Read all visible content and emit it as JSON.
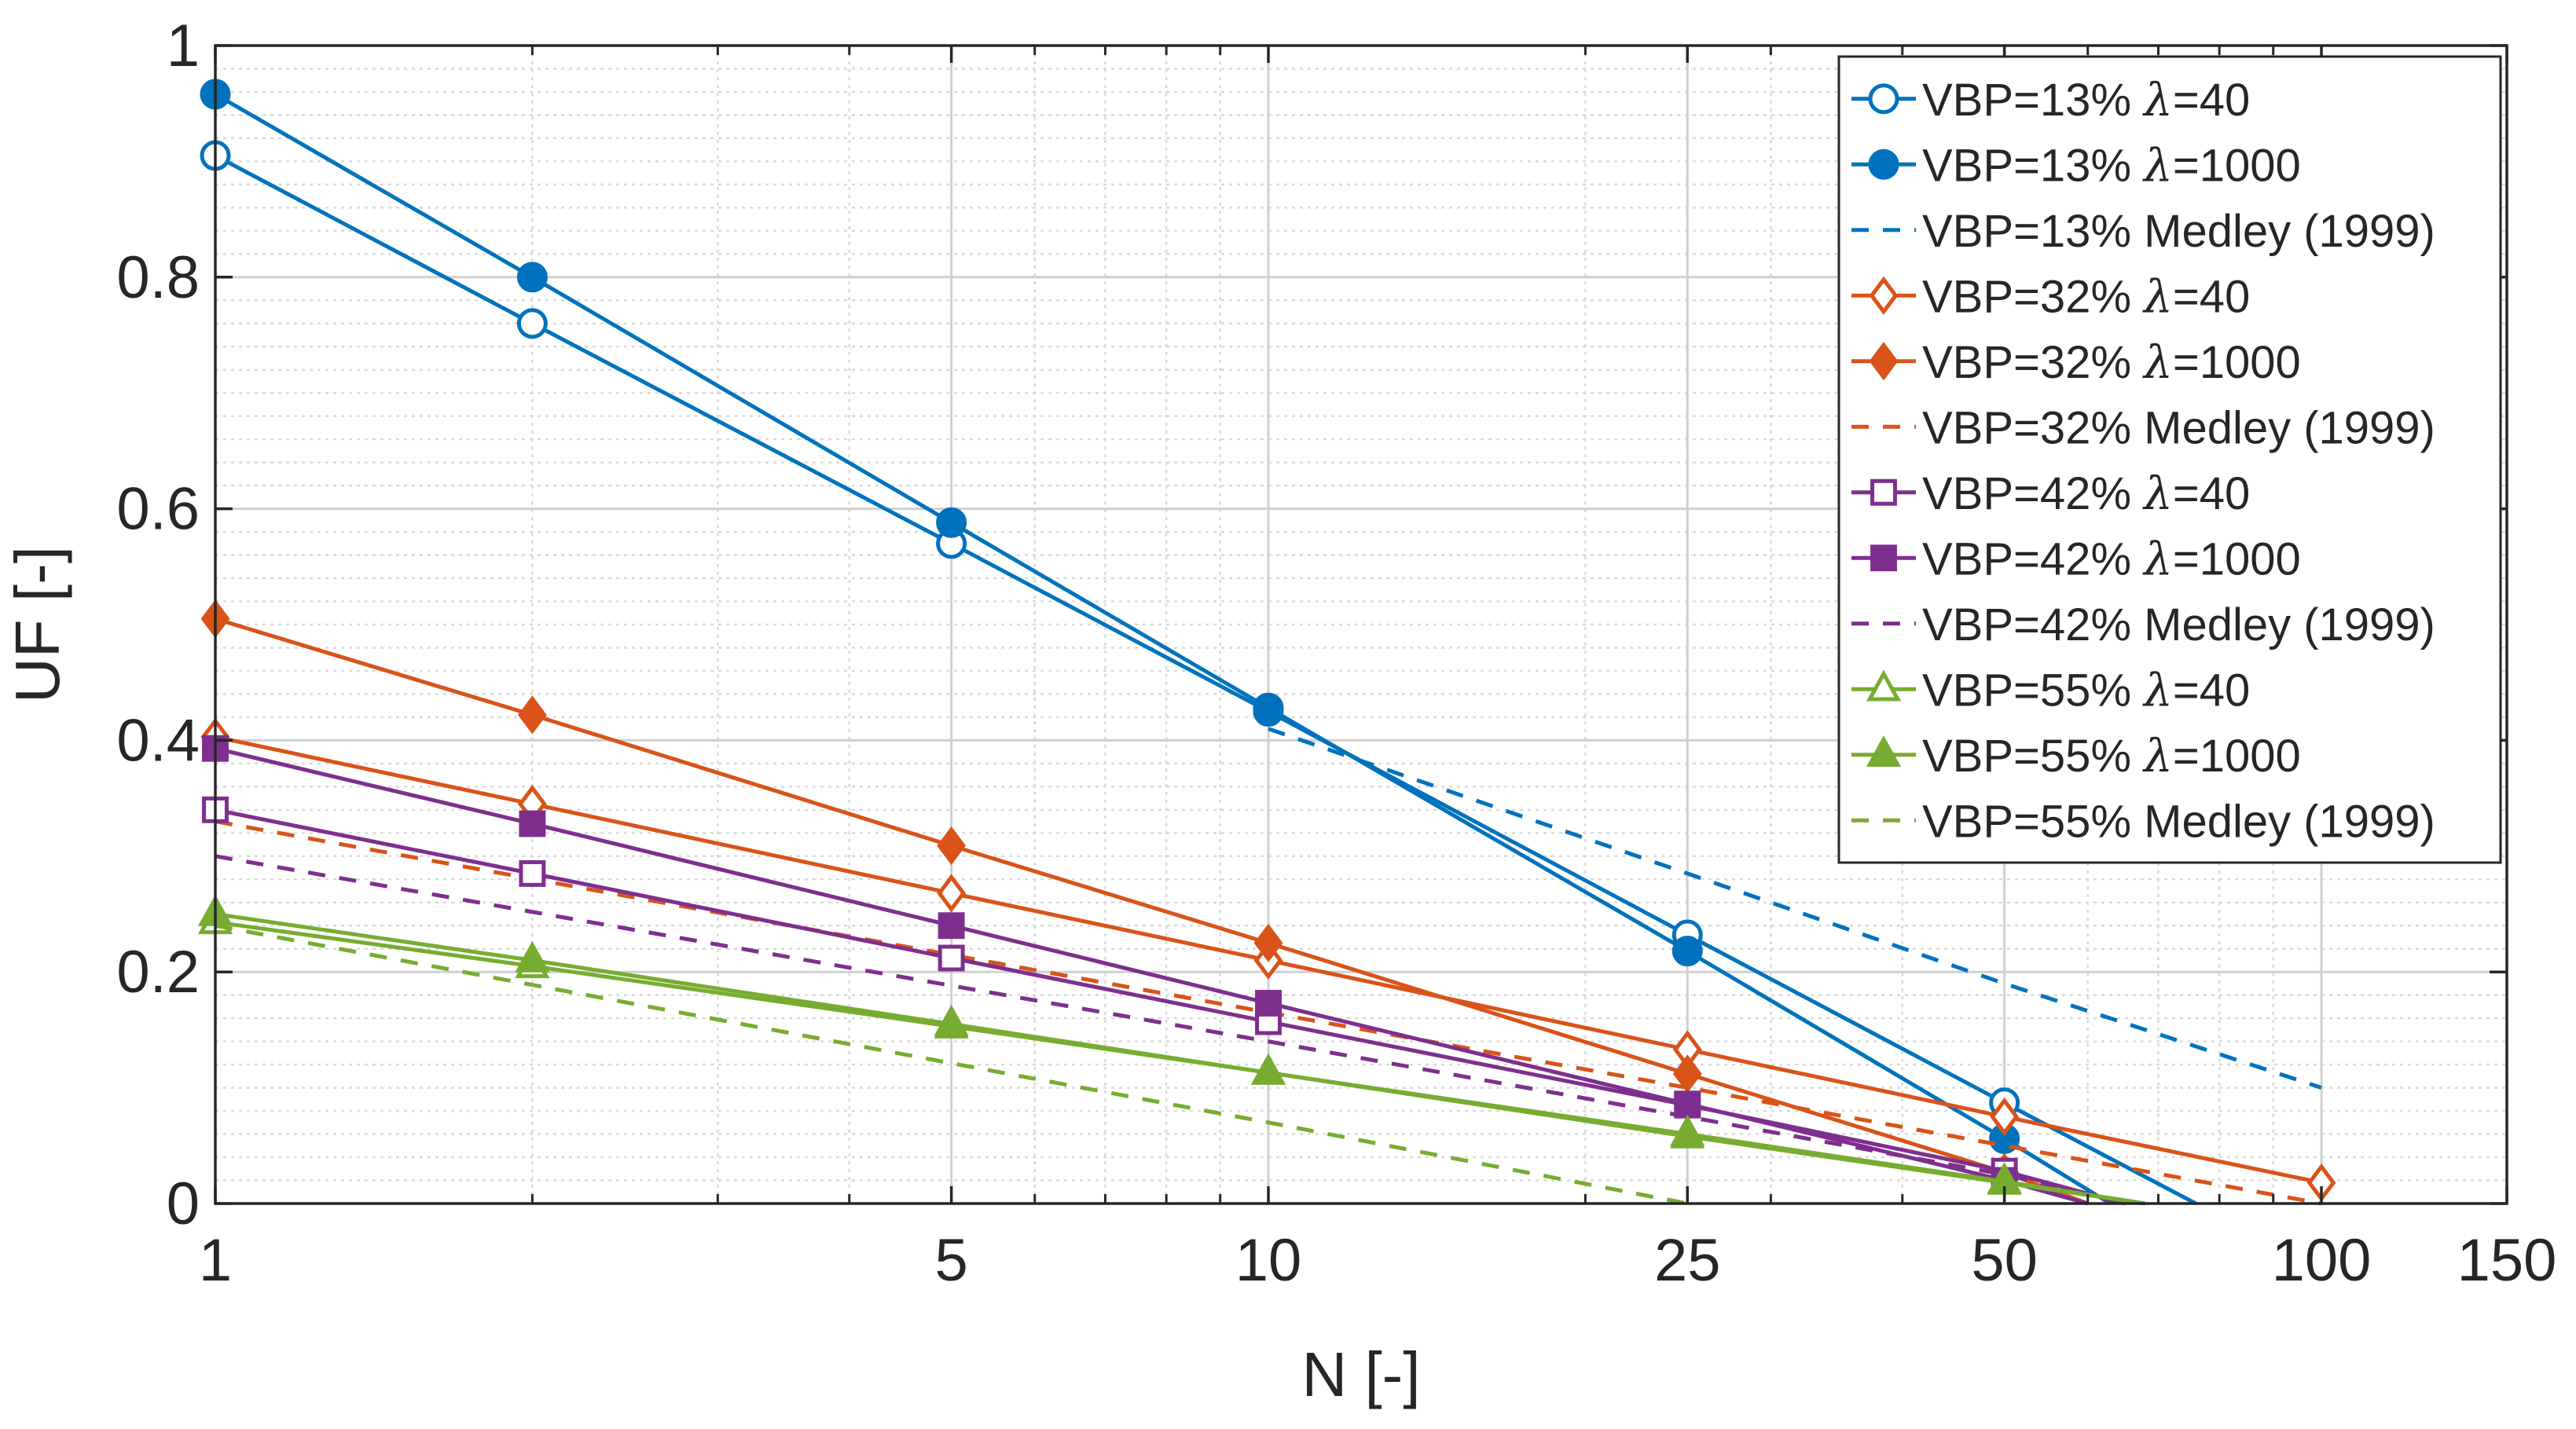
{
  "chart_data": {
    "type": "line",
    "title": "",
    "xlabel": "N [-]",
    "ylabel": "UF [-]",
    "xscale": "log",
    "xlim": [
      1,
      150
    ],
    "ylim": [
      0,
      1
    ],
    "xticks": [
      1,
      5,
      10,
      25,
      50,
      100,
      150
    ],
    "xtick_labels": [
      "1",
      "5",
      "10",
      "25",
      "50",
      "100",
      "150"
    ],
    "yticks": [
      0,
      0.2,
      0.4,
      0.6,
      0.8,
      1
    ],
    "ytick_labels": [
      "0",
      "0.2",
      "0.4",
      "0.6",
      "0.8",
      "1"
    ],
    "grid": true,
    "legend_position": "top-right",
    "series": [
      {
        "name": "VBP=13% λ=40",
        "label_parts": [
          "VBP=13% ",
          "λ",
          "=40"
        ],
        "color": "#0072BD",
        "style": "solid",
        "marker": "circle-open",
        "points": [
          [
            1,
            0.905
          ],
          [
            2,
            0.76
          ],
          [
            5,
            0.57
          ],
          [
            10,
            0.425
          ],
          [
            25,
            0.232
          ],
          [
            50,
            0.087
          ],
          [
            76,
            0
          ]
        ]
      },
      {
        "name": "VBP=13% λ=1000",
        "label_parts": [
          "VBP=13% ",
          "λ",
          "=1000"
        ],
        "color": "#0072BD",
        "style": "solid",
        "marker": "circle-filled",
        "points": [
          [
            1,
            0.958
          ],
          [
            2,
            0.8
          ],
          [
            5,
            0.588
          ],
          [
            10,
            0.428
          ],
          [
            25,
            0.218
          ],
          [
            50,
            0.056
          ],
          [
            63,
            0
          ]
        ]
      },
      {
        "name": "VBP=13% Medley (1999)",
        "label_parts": [
          "VBP=13% Medley (1999)"
        ],
        "color": "#0072BD",
        "style": "dashed",
        "marker": "none",
        "points": [
          [
            10,
            0.41
          ],
          [
            25,
            0.285
          ],
          [
            50,
            0.19
          ],
          [
            100,
            0.1
          ]
        ]
      },
      {
        "name": "VBP=32% λ=40",
        "label_parts": [
          "VBP=32% ",
          "λ",
          "=40"
        ],
        "color": "#D95319",
        "style": "solid",
        "marker": "diamond-open",
        "points": [
          [
            1,
            0.403
          ],
          [
            2,
            0.345
          ],
          [
            5,
            0.268
          ],
          [
            10,
            0.21
          ],
          [
            25,
            0.133
          ],
          [
            50,
            0.075
          ],
          [
            100,
            0.018
          ]
        ]
      },
      {
        "name": "VBP=32% λ=1000",
        "label_parts": [
          "VBP=32% ",
          "λ",
          "=1000"
        ],
        "color": "#D95319",
        "style": "solid",
        "marker": "diamond-filled",
        "points": [
          [
            1,
            0.505
          ],
          [
            2,
            0.422
          ],
          [
            5,
            0.309
          ],
          [
            10,
            0.225
          ],
          [
            25,
            0.112
          ],
          [
            50,
            0.027
          ],
          [
            60,
            0
          ]
        ]
      },
      {
        "name": "VBP=32% Medley (1999)",
        "label_parts": [
          "VBP=32% Medley (1999)"
        ],
        "color": "#D95319",
        "style": "dashed",
        "marker": "none",
        "points": [
          [
            1,
            0.33
          ],
          [
            10,
            0.165
          ],
          [
            25,
            0.1
          ],
          [
            50,
            0.05
          ],
          [
            100,
            0
          ]
        ]
      },
      {
        "name": "VBP=42% λ=40",
        "label_parts": [
          "VBP=42% ",
          "λ",
          "=40"
        ],
        "color": "#7E2F8E",
        "style": "solid",
        "marker": "square-open",
        "points": [
          [
            1,
            0.34
          ],
          [
            2,
            0.285
          ],
          [
            5,
            0.212
          ],
          [
            10,
            0.157
          ],
          [
            25,
            0.085
          ],
          [
            50,
            0.028
          ],
          [
            65,
            0
          ]
        ]
      },
      {
        "name": "VBP=42% λ=1000",
        "label_parts": [
          "VBP=42% ",
          "λ",
          "=1000"
        ],
        "color": "#7E2F8E",
        "style": "solid",
        "marker": "square-filled",
        "points": [
          [
            1,
            0.393
          ],
          [
            2,
            0.328
          ],
          [
            5,
            0.24
          ],
          [
            10,
            0.173
          ],
          [
            25,
            0.086
          ],
          [
            50,
            0.02
          ],
          [
            60,
            0
          ]
        ]
      },
      {
        "name": "VBP=42% Medley (1999)",
        "label_parts": [
          "VBP=42% Medley (1999)"
        ],
        "color": "#7E2F8E",
        "style": "dashed",
        "marker": "none",
        "points": [
          [
            1,
            0.3
          ],
          [
            10,
            0.14
          ],
          [
            25,
            0.075
          ],
          [
            50,
            0.025
          ],
          [
            65,
            0
          ]
        ]
      },
      {
        "name": "VBP=55% λ=40",
        "label_parts": [
          "VBP=55% ",
          "λ",
          "=40"
        ],
        "color": "#77AC30",
        "style": "solid",
        "marker": "triangle-open",
        "points": [
          [
            1,
            0.243
          ],
          [
            2,
            0.205
          ],
          [
            5,
            0.153
          ],
          [
            10,
            0.113
          ],
          [
            25,
            0.06
          ],
          [
            50,
            0.019
          ],
          [
            68,
            0
          ]
        ]
      },
      {
        "name": "VBP=55% λ=1000",
        "label_parts": [
          "VBP=55% ",
          "λ",
          "=1000"
        ],
        "color": "#77AC30",
        "style": "solid",
        "marker": "triangle-filled",
        "points": [
          [
            1,
            0.25
          ],
          [
            2,
            0.21
          ],
          [
            5,
            0.155
          ],
          [
            10,
            0.113
          ],
          [
            25,
            0.058
          ],
          [
            50,
            0.018
          ],
          [
            68,
            0
          ]
        ]
      },
      {
        "name": "VBP=55% Medley (1999)",
        "label_parts": [
          "VBP=55% Medley (1999)"
        ],
        "color": "#77AC30",
        "style": "dashed",
        "marker": "none",
        "points": [
          [
            1,
            0.24
          ],
          [
            10,
            0.07
          ],
          [
            25,
            0
          ]
        ]
      }
    ]
  }
}
